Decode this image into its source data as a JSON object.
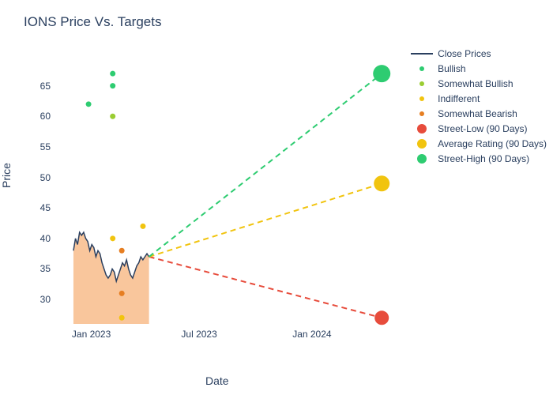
{
  "chart": {
    "type": "line",
    "title": "IONS Price Vs. Targets",
    "xlabel": "Date",
    "ylabel": "Price",
    "background_color": "#ffffff",
    "text_color": "#2a3f5f",
    "ylim": [
      26,
      70
    ],
    "yticks": [
      30,
      35,
      40,
      45,
      50,
      55,
      60,
      65
    ],
    "x_range_days": 575,
    "xticks": [
      {
        "label": "Jan 2023",
        "day": 60
      },
      {
        "label": "Jul 2023",
        "day": 241
      },
      {
        "label": "Jan 2024",
        "day": 425
      }
    ],
    "close_prices": {
      "color": "#2a3f5f",
      "fill_color": "#f5a05a",
      "fill_opacity": 0.6,
      "line_width": 1.5,
      "start_day": 30,
      "end_day": 155,
      "points": [
        38,
        40,
        39,
        41,
        40.5,
        41,
        40,
        39.5,
        38,
        39,
        38.5,
        37,
        38,
        37.5,
        36,
        35,
        34,
        33.5,
        34,
        35,
        34.5,
        33,
        34,
        35,
        36,
        35.5,
        36.5,
        35,
        34,
        33.5,
        34.5,
        35.5,
        36,
        37,
        36.5,
        37,
        37.5,
        37
      ]
    },
    "targets": [
      {
        "label": "Street-Low (90 Days)",
        "color": "#e74c3c",
        "start_day": 155,
        "start_price": 37,
        "end_day": 540,
        "end_price": 27,
        "marker_size": 18
      },
      {
        "label": "Average Rating (90 Days)",
        "color": "#f1c40f",
        "start_day": 155,
        "start_price": 37,
        "end_day": 540,
        "end_price": 49,
        "marker_size": 20
      },
      {
        "label": "Street-High (90 Days)",
        "color": "#2ecc71",
        "start_day": 155,
        "start_price": 37,
        "end_day": 540,
        "end_price": 67,
        "marker_size": 22
      }
    ],
    "scatter": [
      {
        "label": "Bullish",
        "color": "#2ecc71",
        "points": [
          {
            "day": 55,
            "price": 62
          },
          {
            "day": 95,
            "price": 65
          },
          {
            "day": 95,
            "price": 67
          }
        ]
      },
      {
        "label": "Somewhat Bullish",
        "color": "#9acd32",
        "points": [
          {
            "day": 95,
            "price": 60
          }
        ]
      },
      {
        "label": "Indifferent",
        "color": "#f1c40f",
        "points": [
          {
            "day": 95,
            "price": 40
          },
          {
            "day": 110,
            "price": 27
          },
          {
            "day": 145,
            "price": 42
          }
        ]
      },
      {
        "label": "Somewhat Bearish",
        "color": "#e67e22",
        "points": [
          {
            "day": 110,
            "price": 38
          },
          {
            "day": 110,
            "price": 31
          }
        ]
      }
    ],
    "legend": [
      {
        "type": "line",
        "label": "Close Prices",
        "color": "#2a3f5f"
      },
      {
        "type": "dot",
        "label": "Bullish",
        "color": "#2ecc71",
        "size": 6
      },
      {
        "type": "dot",
        "label": "Somewhat Bullish",
        "color": "#9acd32",
        "size": 6
      },
      {
        "type": "dot",
        "label": "Indifferent",
        "color": "#f1c40f",
        "size": 6
      },
      {
        "type": "dot",
        "label": "Somewhat Bearish",
        "color": "#e67e22",
        "size": 6
      },
      {
        "type": "bigdot",
        "label": "Street-Low (90 Days)",
        "color": "#e74c3c",
        "size": 12
      },
      {
        "type": "bigdot",
        "label": "Average Rating (90 Days)",
        "color": "#f1c40f",
        "size": 12
      },
      {
        "type": "bigdot",
        "label": "Street-High (90 Days)",
        "color": "#2ecc71",
        "size": 12
      }
    ]
  }
}
